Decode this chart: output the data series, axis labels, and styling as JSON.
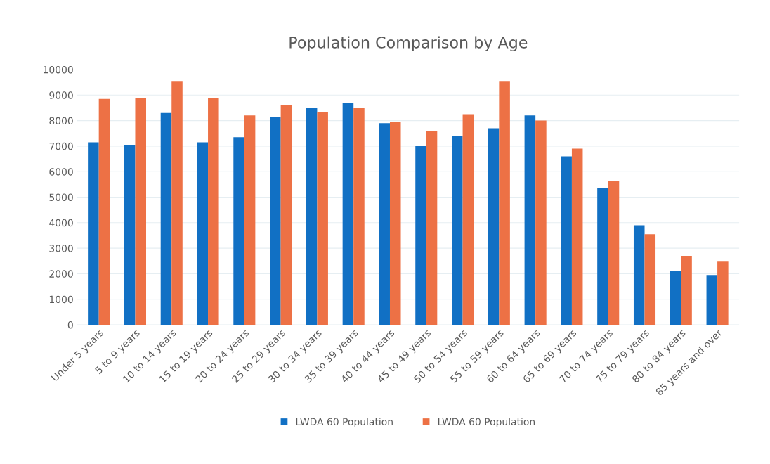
{
  "chart_data": {
    "type": "bar",
    "title": "Population Comparison by Age",
    "categories": [
      "Under 5 years",
      "5 to 9 years",
      "10 to 14 years",
      "15 to 19 years",
      "20 to 24 years",
      "25 to 29 years",
      "30 to 34 years",
      "35 to 39 years",
      "40 to 44 years",
      "45 to 49 years",
      "50 to 54 years",
      "55 to 59 years",
      "60 to 64 years",
      "65 to 69 years",
      "70 to 74 years",
      "75 to 79 years",
      "80 to 84 years",
      "85 years and over"
    ],
    "series": [
      {
        "name": "LWDA 60 Population",
        "color": "#1170c4",
        "values": [
          7150,
          7050,
          8300,
          7150,
          7350,
          8150,
          8500,
          8700,
          7900,
          7000,
          7400,
          7700,
          8200,
          6600,
          5350,
          3900,
          2100,
          1950
        ]
      },
      {
        "name": "LWDA 60 Population",
        "color": "#ed7145",
        "values": [
          8850,
          8900,
          9550,
          8900,
          8200,
          8600,
          8350,
          8500,
          7950,
          7600,
          8250,
          9550,
          8000,
          6900,
          5650,
          3550,
          2700,
          2500
        ]
      }
    ],
    "ylim": [
      0,
      10000
    ],
    "yticks": [
      0,
      1000,
      2000,
      3000,
      4000,
      5000,
      6000,
      7000,
      8000,
      9000,
      10000
    ],
    "grid": "y",
    "legend": "bottom"
  }
}
